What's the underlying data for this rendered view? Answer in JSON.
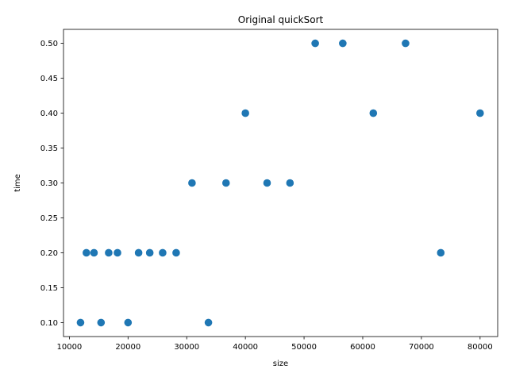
{
  "chart_data": {
    "type": "scatter",
    "title": "Original quickSort",
    "xlabel": "size",
    "ylabel": "time",
    "xlim": [
      9000,
      83000
    ],
    "ylim": [
      0.08,
      0.52
    ],
    "x_ticks": [
      10000,
      20000,
      30000,
      40000,
      50000,
      60000,
      70000,
      80000
    ],
    "x_tick_labels": [
      "10000",
      "20000",
      "30000",
      "40000",
      "50000",
      "60000",
      "70000",
      "80000"
    ],
    "y_ticks": [
      0.1,
      0.15,
      0.2,
      0.25,
      0.3,
      0.35,
      0.4,
      0.45,
      0.5
    ],
    "y_tick_labels": [
      "0.10",
      "0.15",
      "0.20",
      "0.25",
      "0.30",
      "0.35",
      "0.40",
      "0.45",
      "0.50"
    ],
    "grid": false,
    "marker_color": "#1f77b4",
    "series": [
      {
        "x": [
          11900,
          12900,
          14200,
          15400,
          16700,
          18200,
          20000,
          21800,
          23700,
          25900,
          28200,
          30900,
          33700,
          36700,
          40000,
          43700,
          47600,
          51900,
          56600,
          61800,
          67300,
          73300,
          80000
        ],
        "y": [
          0.1,
          0.2,
          0.2,
          0.1,
          0.2,
          0.2,
          0.1,
          0.2,
          0.2,
          0.2,
          0.2,
          0.3,
          0.1,
          0.3,
          0.4,
          0.3,
          0.3,
          0.5,
          0.5,
          0.4,
          0.5,
          0.2,
          0.4
        ]
      }
    ]
  }
}
